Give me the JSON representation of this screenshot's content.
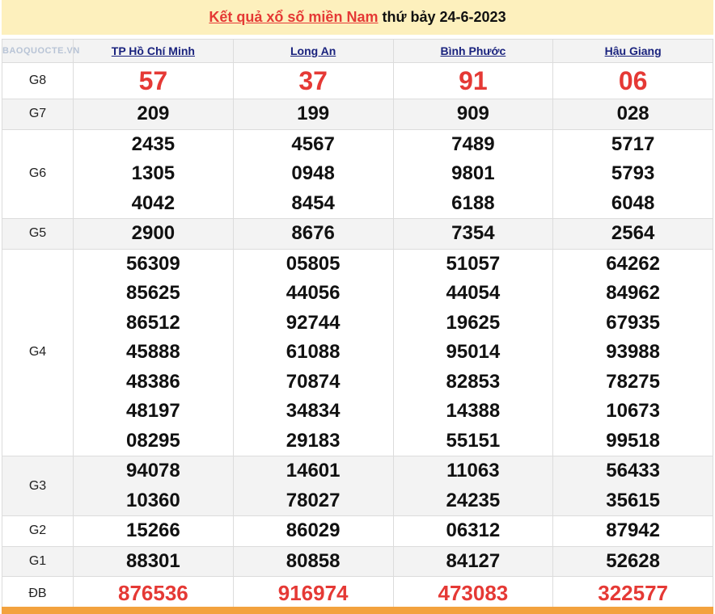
{
  "title": {
    "link": "Kết quả xổ số miền Nam",
    "rest": " thứ bảy 24-6-2023"
  },
  "provinces": [
    "TP Hồ Chí Minh",
    "Long An",
    "Bình Phước",
    "Hậu Giang"
  ],
  "rows": [
    {
      "label": "G8",
      "style": "big",
      "values": [
        [
          "57"
        ],
        [
          "37"
        ],
        [
          "91"
        ],
        [
          "06"
        ]
      ]
    },
    {
      "label": "G7",
      "values": [
        [
          "209"
        ],
        [
          "199"
        ],
        [
          "909"
        ],
        [
          "028"
        ]
      ]
    },
    {
      "label": "G6",
      "values": [
        [
          "2435",
          "1305",
          "4042"
        ],
        [
          "4567",
          "0948",
          "8454"
        ],
        [
          "7489",
          "9801",
          "6188"
        ],
        [
          "5717",
          "5793",
          "6048"
        ]
      ]
    },
    {
      "label": "G5",
      "values": [
        [
          "2900"
        ],
        [
          "8676"
        ],
        [
          "7354"
        ],
        [
          "2564"
        ]
      ]
    },
    {
      "label": "G4",
      "values": [
        [
          "56309",
          "85625",
          "86512",
          "45888",
          "48386",
          "48197",
          "08295"
        ],
        [
          "05805",
          "44056",
          "92744",
          "61088",
          "70874",
          "34834",
          "29183"
        ],
        [
          "51057",
          "44054",
          "19625",
          "95014",
          "82853",
          "14388",
          "55151"
        ],
        [
          "64262",
          "84962",
          "67935",
          "93988",
          "78275",
          "10673",
          "99518"
        ]
      ]
    },
    {
      "label": "G3",
      "values": [
        [
          "94078",
          "10360"
        ],
        [
          "14601",
          "78027"
        ],
        [
          "11063",
          "24235"
        ],
        [
          "56433",
          "35615"
        ]
      ]
    },
    {
      "label": "G2",
      "values": [
        [
          "15266"
        ],
        [
          "86029"
        ],
        [
          "06312"
        ],
        [
          "87942"
        ]
      ]
    },
    {
      "label": "G1",
      "values": [
        [
          "88301"
        ],
        [
          "80858"
        ],
        [
          "84127"
        ],
        [
          "52628"
        ]
      ]
    },
    {
      "label": "ĐB",
      "style": "db",
      "values": [
        [
          "876536"
        ],
        [
          "916974"
        ],
        [
          "473083"
        ],
        [
          "322577"
        ]
      ]
    }
  ],
  "watermark": "BAOQUOCTE.VN",
  "colors": {
    "accent_red": "#e53935",
    "title_bg": "#fdf0bd",
    "bottom_bar": "#f3a23e"
  }
}
